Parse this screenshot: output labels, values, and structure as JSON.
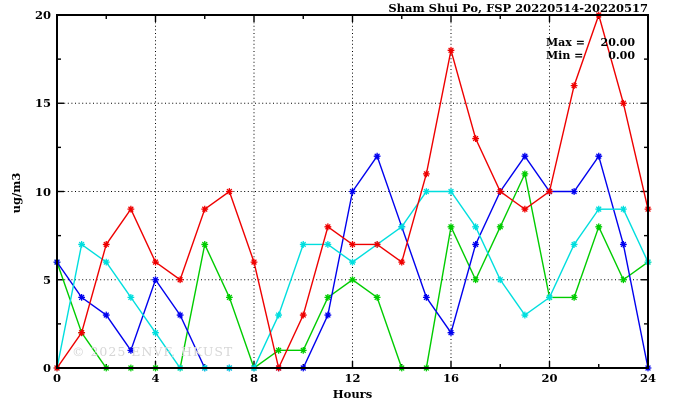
{
  "header": {
    "title": "Sham Shui Po, FSP 20220514-20220517"
  },
  "legend": {
    "max_label": "Max =",
    "max_value": "20.00",
    "min_label": "Min =",
    "min_value": "0.00"
  },
  "axes": {
    "x_label": "Hours",
    "y_label": "ug/m3"
  },
  "watermark": {
    "text": "© 2025 ENVF, HKUST"
  },
  "chart_data": {
    "type": "line",
    "title": "Sham Shui Po, FSP 20220514-20220517",
    "xlabel": "Hours",
    "ylabel": "ug/m3",
    "xlim": [
      0,
      24
    ],
    "ylim": [
      0,
      20
    ],
    "x": [
      0,
      1,
      2,
      3,
      4,
      5,
      6,
      7,
      8,
      9,
      10,
      11,
      12,
      13,
      14,
      15,
      16,
      17,
      18,
      19,
      20,
      21,
      22,
      23,
      24
    ],
    "series": [
      {
        "name": "green-series",
        "color": "#00cc00",
        "values": [
          6,
          2,
          0,
          0,
          0,
          0,
          7,
          4,
          0,
          1,
          1,
          4,
          5,
          4,
          0,
          0,
          8,
          5,
          8,
          11,
          4,
          4,
          8,
          5,
          6
        ]
      },
      {
        "name": "blue-series",
        "color": "#0000ee",
        "values": [
          6,
          4,
          3,
          1,
          5,
          3,
          0,
          0,
          0,
          0,
          0,
          3,
          10,
          12,
          8,
          4,
          2,
          7,
          10,
          12,
          10,
          10,
          12,
          7,
          0
        ]
      },
      {
        "name": "cyan-series",
        "color": "#00dede",
        "values": [
          0,
          7,
          6,
          4,
          2,
          0,
          0,
          0,
          0,
          3,
          7,
          7,
          6,
          7,
          8,
          10,
          10,
          8,
          5,
          3,
          4,
          7,
          9,
          9,
          6
        ]
      },
      {
        "name": "red-series",
        "color": "#ee0000",
        "values": [
          0,
          2,
          7,
          9,
          6,
          5,
          9,
          10,
          6,
          0,
          3,
          8,
          7,
          7,
          6,
          11,
          18,
          13,
          10,
          9,
          10,
          16,
          20,
          15,
          9
        ]
      }
    ],
    "x_major_ticks": [
      0,
      4,
      8,
      12,
      16,
      20,
      24
    ],
    "x_minor_ticks": [
      2,
      6,
      10,
      14,
      18,
      22
    ],
    "y_major_ticks": [
      0,
      5,
      10,
      15,
      20
    ],
    "y_minor_ticks": [
      2.5,
      7.5,
      12.5,
      17.5
    ],
    "grid_x": [
      4,
      8,
      12,
      16,
      20
    ],
    "grid_y": [
      5,
      10,
      15
    ],
    "grid_style": "dotted",
    "legend_position": "top-right",
    "stats": {
      "max": 20.0,
      "min": 0.0
    }
  }
}
